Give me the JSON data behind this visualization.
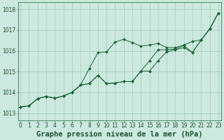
{
  "background_color": "#cce8df",
  "grid_color": "#aacfc5",
  "line_color": "#1a6634",
  "text_color": "#1a5530",
  "title": "Graphe pression niveau de la mer (hPa)",
  "ylabel_values": [
    1013,
    1014,
    1015,
    1016,
    1017,
    1018
  ],
  "xlim": [
    -0.3,
    23.3
  ],
  "ylim": [
    1012.65,
    1018.35
  ],
  "series": [
    [
      1013.3,
      1013.35,
      1013.7,
      1013.8,
      1013.72,
      1013.82,
      1014.0,
      1014.35,
      1015.15,
      1015.9,
      1015.95,
      1016.42,
      1016.55,
      1016.4,
      1016.22,
      1016.28,
      1016.35,
      1016.15,
      1016.15,
      1016.28,
      1016.45,
      1016.52,
      1017.05,
      1017.82
    ],
    [
      1013.3,
      1013.35,
      1013.7,
      1013.8,
      1013.72,
      1013.82,
      1014.0,
      1014.35,
      1014.42,
      1014.82,
      1014.42,
      1014.45,
      1014.52,
      1014.52,
      1015.02,
      1015.52,
      1016.05,
      1016.05,
      1016.08,
      1016.25,
      1015.92,
      1016.52,
      1017.05,
      1017.82
    ],
    [
      1013.3,
      1013.35,
      1013.7,
      1013.8,
      1013.72,
      1013.82,
      1014.0,
      1014.35,
      1014.42,
      1014.82,
      1014.42,
      1014.45,
      1014.52,
      1014.52,
      1015.02,
      1015.02,
      1015.52,
      1015.95,
      1016.05,
      1016.15,
      1015.92,
      1016.52,
      1017.05,
      1017.82
    ]
  ],
  "tick_fontsize": 5.5,
  "title_fontsize": 7.5,
  "xticks": [
    0,
    1,
    2,
    3,
    4,
    5,
    6,
    7,
    8,
    9,
    10,
    11,
    12,
    13,
    14,
    15,
    16,
    17,
    18,
    19,
    20,
    21,
    22,
    23
  ]
}
